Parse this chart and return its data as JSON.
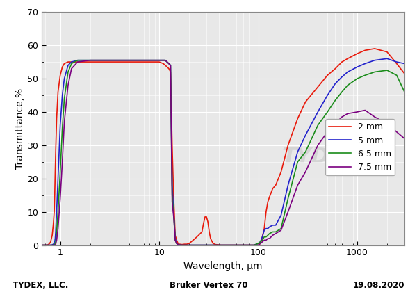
{
  "xlabel": "Wavelength, μm",
  "ylabel": "Transmittance,%",
  "xlim": [
    0.65,
    3000
  ],
  "ylim": [
    0,
    70
  ],
  "yticks": [
    0,
    10,
    20,
    30,
    40,
    50,
    60,
    70
  ],
  "footer_left": "TYDEX, LLC.",
  "footer_center": "Bruker Vertex 70",
  "footer_right": "19.08.2020",
  "legend_labels": [
    "2 mm",
    "5 mm",
    "6.5 mm",
    "7.5 mm"
  ],
  "line_colors": [
    "#e8190a",
    "#2222cc",
    "#1a8c1a",
    "#7b0080"
  ],
  "background_color": "#e8e8e8",
  "curves": {
    "2mm": {
      "wavelengths": [
        0.65,
        0.7,
        0.75,
        0.78,
        0.8,
        0.83,
        0.85,
        0.87,
        0.88,
        0.89,
        0.9,
        0.92,
        0.95,
        1.0,
        1.05,
        1.1,
        1.2,
        1.3,
        1.5,
        2.0,
        3.0,
        4.0,
        5.0,
        6.0,
        7.0,
        8.0,
        9.0,
        10.0,
        11.0,
        11.5,
        12.0,
        12.5,
        13.0,
        13.5,
        14.0,
        14.5,
        15.0,
        15.5,
        16.0,
        17.0,
        18.0,
        19.0,
        20.0,
        21.0,
        22.0,
        24.0,
        25.0,
        27.0,
        28.0,
        29.0,
        30.0,
        31.0,
        32.0,
        33.0,
        35.0,
        37.0,
        40.0,
        42.0,
        45.0,
        50.0,
        55.0,
        60.0,
        65.0,
        70.0,
        75.0,
        80.0,
        85.0,
        90.0,
        95.0,
        100.0,
        105.0,
        110.0,
        115.0,
        120.0,
        125.0,
        130.0,
        140.0,
        150.0,
        170.0,
        200.0,
        250.0,
        300.0,
        400.0,
        500.0,
        600.0,
        700.0,
        800.0,
        1000.0,
        1200.0,
        1500.0,
        2000.0,
        2500.0,
        3000.0
      ],
      "transmittance": [
        0.0,
        0.0,
        0.1,
        0.5,
        1.0,
        3.0,
        6.0,
        10.0,
        15.0,
        22.0,
        28.0,
        38.0,
        46.0,
        51.0,
        53.5,
        54.5,
        55.0,
        55.0,
        55.0,
        55.0,
        55.0,
        55.0,
        55.0,
        55.0,
        55.0,
        55.0,
        55.0,
        55.0,
        54.5,
        54.0,
        53.5,
        53.0,
        52.0,
        30.0,
        14.0,
        3.0,
        1.5,
        0.5,
        0.3,
        0.2,
        0.3,
        0.3,
        0.5,
        1.0,
        1.5,
        2.5,
        3.0,
        4.0,
        6.5,
        8.5,
        8.5,
        7.0,
        4.0,
        2.0,
        0.5,
        0.2,
        0.1,
        0.0,
        0.0,
        0.0,
        0.0,
        0.0,
        0.0,
        0.0,
        0.0,
        0.0,
        0.0,
        0.0,
        0.0,
        0.0,
        0.5,
        2.5,
        5.0,
        10.0,
        13.0,
        14.5,
        17.0,
        18.0,
        22.0,
        30.0,
        38.0,
        43.0,
        47.5,
        51.0,
        53.0,
        55.0,
        56.0,
        57.5,
        58.5,
        59.0,
        58.0,
        54.5,
        51.5
      ]
    },
    "5mm": {
      "wavelengths": [
        0.65,
        0.7,
        0.75,
        0.78,
        0.8,
        0.83,
        0.85,
        0.87,
        0.88,
        0.89,
        0.9,
        0.92,
        0.95,
        1.0,
        1.05,
        1.1,
        1.2,
        1.3,
        1.5,
        2.0,
        3.0,
        4.0,
        5.0,
        6.0,
        7.0,
        8.0,
        9.0,
        10.0,
        11.0,
        11.5,
        12.0,
        12.5,
        13.0,
        13.5,
        14.0,
        14.5,
        15.0,
        15.5,
        16.0,
        17.0,
        18.0,
        20.0,
        22.0,
        25.0,
        30.0,
        35.0,
        40.0,
        45.0,
        50.0,
        55.0,
        60.0,
        65.0,
        70.0,
        75.0,
        80.0,
        90.0,
        100.0,
        105.0,
        110.0,
        115.0,
        120.0,
        125.0,
        130.0,
        140.0,
        150.0,
        170.0,
        200.0,
        250.0,
        300.0,
        400.0,
        500.0,
        600.0,
        700.0,
        800.0,
        1000.0,
        1200.0,
        1500.0,
        2000.0,
        2500.0,
        3000.0
      ],
      "transmittance": [
        0.0,
        0.0,
        0.0,
        0.0,
        0.0,
        0.1,
        0.3,
        0.5,
        1.0,
        2.0,
        4.0,
        10.0,
        20.0,
        36.0,
        45.0,
        50.0,
        54.0,
        55.0,
        55.5,
        55.5,
        55.5,
        55.5,
        55.5,
        55.5,
        55.5,
        55.5,
        55.5,
        55.5,
        55.5,
        55.5,
        55.0,
        54.5,
        54.0,
        18.0,
        10.0,
        2.0,
        0.5,
        0.2,
        0.1,
        0.0,
        0.0,
        0.0,
        0.0,
        0.0,
        0.0,
        0.0,
        0.0,
        0.0,
        0.0,
        0.0,
        0.0,
        0.0,
        0.0,
        0.0,
        0.0,
        0.0,
        0.5,
        1.0,
        2.5,
        4.5,
        5.0,
        5.0,
        5.5,
        6.0,
        6.0,
        9.0,
        18.0,
        28.0,
        33.0,
        40.0,
        45.0,
        48.5,
        50.5,
        52.0,
        53.5,
        54.5,
        55.5,
        56.0,
        55.0,
        54.5
      ]
    },
    "6.5mm": {
      "wavelengths": [
        0.65,
        0.7,
        0.75,
        0.78,
        0.8,
        0.83,
        0.85,
        0.87,
        0.88,
        0.89,
        0.9,
        0.92,
        0.95,
        1.0,
        1.05,
        1.1,
        1.2,
        1.3,
        1.5,
        2.0,
        3.0,
        4.0,
        5.0,
        6.0,
        7.0,
        8.0,
        9.0,
        10.0,
        11.0,
        11.5,
        12.0,
        12.5,
        13.0,
        13.5,
        14.0,
        14.5,
        15.0,
        15.5,
        16.0,
        17.0,
        18.0,
        20.0,
        25.0,
        30.0,
        35.0,
        40.0,
        45.0,
        50.0,
        55.0,
        60.0,
        65.0,
        70.0,
        80.0,
        90.0,
        100.0,
        105.0,
        110.0,
        115.0,
        120.0,
        125.0,
        130.0,
        140.0,
        150.0,
        170.0,
        200.0,
        250.0,
        300.0,
        400.0,
        500.0,
        600.0,
        700.0,
        800.0,
        1000.0,
        1200.0,
        1500.0,
        2000.0,
        2500.0,
        3000.0
      ],
      "transmittance": [
        0.0,
        0.0,
        0.0,
        0.0,
        0.0,
        0.0,
        0.0,
        0.1,
        0.3,
        0.5,
        1.0,
        4.0,
        10.0,
        22.0,
        35.0,
        44.0,
        52.0,
        54.5,
        55.5,
        55.5,
        55.5,
        55.5,
        55.5,
        55.5,
        55.5,
        55.5,
        55.5,
        55.5,
        55.5,
        55.5,
        55.0,
        54.5,
        54.0,
        15.0,
        9.0,
        1.5,
        0.5,
        0.1,
        0.0,
        0.0,
        0.0,
        0.0,
        0.0,
        0.0,
        0.0,
        0.0,
        0.0,
        0.0,
        0.0,
        0.0,
        0.0,
        0.0,
        0.0,
        0.0,
        0.5,
        1.0,
        1.5,
        2.5,
        2.5,
        3.0,
        3.5,
        4.0,
        4.0,
        5.0,
        14.0,
        25.0,
        28.0,
        36.0,
        40.0,
        43.5,
        46.0,
        48.0,
        50.0,
        51.0,
        52.0,
        52.5,
        51.0,
        46.0
      ]
    },
    "7.5mm": {
      "wavelengths": [
        0.65,
        0.7,
        0.75,
        0.78,
        0.8,
        0.83,
        0.85,
        0.87,
        0.88,
        0.89,
        0.9,
        0.92,
        0.95,
        1.0,
        1.05,
        1.1,
        1.2,
        1.3,
        1.5,
        2.0,
        3.0,
        4.0,
        5.0,
        6.0,
        7.0,
        8.0,
        9.0,
        10.0,
        11.0,
        11.5,
        12.0,
        12.5,
        13.0,
        13.5,
        14.0,
        14.5,
        15.0,
        15.5,
        16.0,
        17.0,
        18.0,
        20.0,
        25.0,
        30.0,
        35.0,
        40.0,
        45.0,
        50.0,
        55.0,
        60.0,
        65.0,
        70.0,
        80.0,
        90.0,
        100.0,
        105.0,
        110.0,
        115.0,
        120.0,
        125.0,
        130.0,
        140.0,
        150.0,
        170.0,
        200.0,
        250.0,
        300.0,
        400.0,
        500.0,
        600.0,
        700.0,
        800.0,
        1000.0,
        1200.0,
        1500.0,
        2000.0,
        2500.0,
        3000.0
      ],
      "transmittance": [
        0.0,
        0.0,
        0.0,
        0.0,
        0.0,
        0.0,
        0.0,
        0.0,
        0.0,
        0.1,
        0.3,
        1.5,
        5.0,
        14.0,
        25.0,
        37.0,
        48.0,
        53.0,
        55.0,
        55.5,
        55.5,
        55.5,
        55.5,
        55.5,
        55.5,
        55.5,
        55.5,
        55.5,
        55.5,
        55.5,
        55.0,
        54.5,
        54.0,
        13.0,
        8.5,
        1.5,
        0.5,
        0.1,
        0.0,
        0.0,
        0.0,
        0.0,
        0.0,
        0.0,
        0.0,
        0.0,
        0.0,
        0.0,
        0.0,
        0.0,
        0.0,
        0.0,
        0.0,
        0.0,
        0.0,
        0.5,
        1.0,
        1.5,
        1.5,
        2.0,
        2.0,
        3.0,
        3.5,
        4.5,
        10.0,
        18.0,
        22.0,
        30.0,
        34.0,
        36.5,
        38.5,
        39.5,
        40.0,
        40.5,
        38.5,
        36.5,
        34.0,
        32.0
      ]
    }
  }
}
